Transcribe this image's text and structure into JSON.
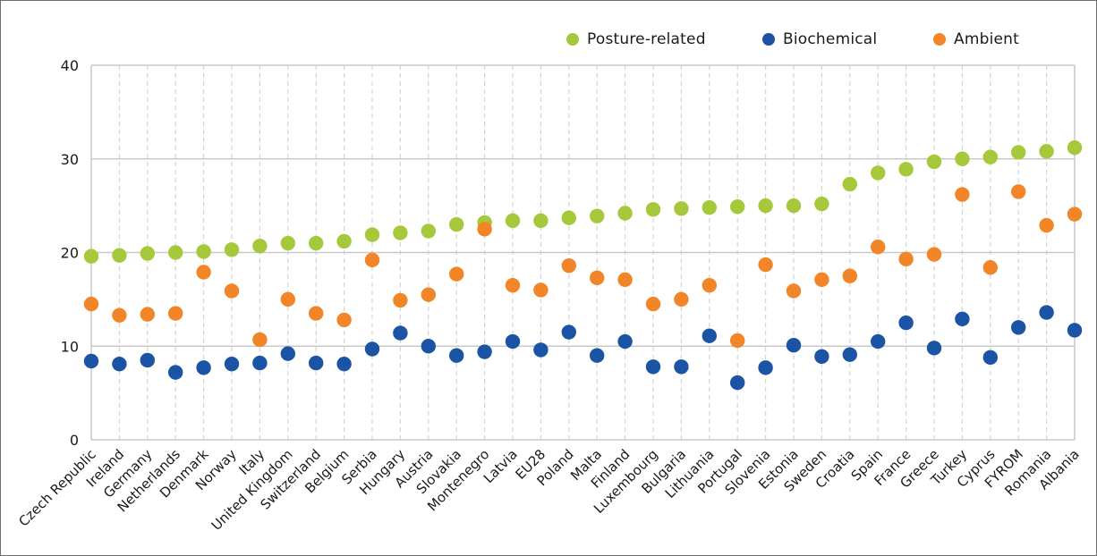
{
  "chart_data": {
    "type": "scatter",
    "title": "",
    "xlabel": "",
    "ylabel": "",
    "axis": {
      "ymin": 0,
      "ymax": 40,
      "ytick_step": 10
    },
    "grid": {
      "horizontal": "solid",
      "vertical": "dashed"
    },
    "legend_position": "top",
    "categories": [
      "Czech Republic",
      "Ireland",
      "Germany",
      "Netherlands",
      "Denmark",
      "Norway",
      "Italy",
      "United Kingdom",
      "Switzerland",
      "Belgium",
      "Serbia",
      "Hungary",
      "Austria",
      "Slovakia",
      "Montenegro",
      "Latvia",
      "EU28",
      "Poland",
      "Malta",
      "Finland",
      "Luxembourg",
      "Bulgaria",
      "Lithuania",
      "Portugal",
      "Slovenia",
      "Estonia",
      "Sweden",
      "Croatia",
      "Spain",
      "France",
      "Greece",
      "Turkey",
      "Cyprus",
      "FYROM",
      "Romania",
      "Albania"
    ],
    "series": [
      {
        "name": "Posture-related",
        "color": "#A5C93A",
        "values": [
          19.6,
          19.7,
          19.9,
          20.0,
          20.1,
          20.3,
          20.7,
          21.0,
          21.0,
          21.2,
          21.9,
          22.1,
          22.3,
          23.0,
          23.2,
          23.4,
          23.4,
          23.7,
          23.9,
          24.2,
          24.6,
          24.7,
          24.8,
          24.9,
          25.0,
          25.0,
          25.2,
          27.3,
          28.5,
          28.9,
          29.7,
          30.0,
          30.2,
          30.7,
          30.8,
          31.2
        ]
      },
      {
        "name": "Biochemical",
        "color": "#1B53A5",
        "values": [
          8.4,
          8.1,
          8.5,
          7.2,
          7.7,
          8.1,
          8.2,
          9.2,
          8.2,
          8.1,
          9.7,
          11.4,
          10.0,
          9.0,
          9.4,
          10.5,
          9.6,
          11.5,
          9.0,
          10.5,
          7.8,
          7.8,
          11.1,
          6.1,
          7.7,
          10.1,
          8.9,
          9.1,
          10.5,
          12.5,
          9.8,
          12.9,
          8.8,
          12.0,
          13.6,
          11.7
        ]
      },
      {
        "name": "Ambient",
        "color": "#F28527",
        "values": [
          14.5,
          13.3,
          13.4,
          13.5,
          17.9,
          15.9,
          10.7,
          15.0,
          13.5,
          12.8,
          19.2,
          14.9,
          15.5,
          17.7,
          22.5,
          16.5,
          16.0,
          18.6,
          17.3,
          17.1,
          14.5,
          15.0,
          16.5,
          10.6,
          18.7,
          15.9,
          17.1,
          17.5,
          20.6,
          19.3,
          19.8,
          26.2,
          18.4,
          26.5,
          22.9,
          24.1
        ]
      }
    ],
    "ytick_labels": [
      "0",
      "10",
      "20",
      "30",
      "40"
    ]
  },
  "colors": {
    "gridline_solid": "#c9c9c9",
    "gridline_dashed": "#d4d4d4",
    "text": "#1a1a1a",
    "frame_border": "#6e6e6e"
  }
}
